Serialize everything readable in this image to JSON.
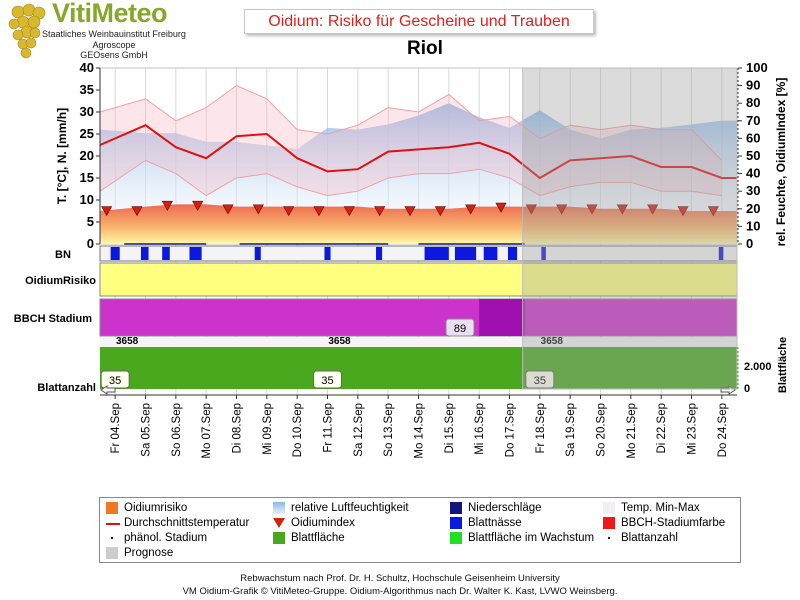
{
  "header": {
    "logo_title": "VitiMeteo",
    "logo_lines": [
      "Staatliches Weinbauinstitut Freiburg",
      "Agroscope",
      "GEOsens GmbH"
    ],
    "chart_title": "Oidium: Risiko für Gescheine und Trauben",
    "location": "Riol"
  },
  "colors": {
    "title_red": "#e0201c",
    "temperature_line": "#e01010",
    "oidium_index_marker": "#d42010",
    "humidity_area": "#9ec4ec",
    "temp_band": "#f6b8c0",
    "oidium_risk_band": "#ffff80",
    "bbch_color": "#cc33cc",
    "bbch_dark": "#a010b0",
    "leaf_area": "#4aa81e",
    "leaf_wetness": "#0a18e0",
    "forecast_shade": "#a0a0a0"
  },
  "chart_data": {
    "type": "line",
    "x_categories": [
      "Fr 04.Sep",
      "Sa 05.Sep",
      "So 06.Sep",
      "Mo 07.Sep",
      "Di 08.Sep",
      "Mi 09.Sep",
      "Do 10.Sep",
      "Fr 11.Sep",
      "Sa 12.Sep",
      "So 13.Sep",
      "Mo 14.Sep",
      "Di 15.Sep",
      "Mi 16.Sep",
      "Do 17.Sep",
      "Fr 18.Sep",
      "Sa 19.Sep",
      "So 20.Sep",
      "Mo 21.Sep",
      "Di 22.Sep",
      "Mi 23.Sep",
      "Do 24.Sep"
    ],
    "forecast_start": "Fr 18.Sep",
    "left_axis": {
      "label": "T. [°C], N. [mm/h]",
      "ticks": [
        0,
        5,
        10,
        15,
        20,
        25,
        30,
        35,
        40
      ],
      "range": [
        0,
        40
      ]
    },
    "right_axis": {
      "label": "rel. Feuchte, OidiumIndex [%]",
      "ticks": [
        0,
        10,
        20,
        30,
        40,
        50,
        60,
        70,
        80,
        90,
        100
      ],
      "range": [
        0,
        100
      ]
    },
    "series": [
      {
        "name": "Durchschnittstemperatur",
        "axis": "left",
        "x": [
          0,
          1,
          2,
          3,
          4,
          5,
          6,
          7,
          8,
          9,
          10,
          11,
          12,
          13,
          14,
          15,
          16,
          17,
          18,
          19,
          20
        ],
        "values": [
          22.5,
          27,
          22,
          19.5,
          24.5,
          25,
          19.5,
          16.5,
          17,
          21,
          21.5,
          22,
          23,
          20.5,
          15,
          19,
          19.5,
          20,
          17.5,
          17.5,
          15
        ]
      },
      {
        "name": "Temp. Min-Max",
        "axis": "left",
        "min": [
          12,
          19,
          16,
          11,
          15,
          16,
          13,
          11,
          12,
          15,
          16,
          16,
          17,
          15,
          11,
          13,
          14,
          14,
          12,
          12,
          11
        ],
        "max": [
          30,
          33,
          28,
          31,
          36,
          33,
          26,
          25,
          27,
          31,
          30,
          34,
          28,
          29,
          24,
          27,
          26,
          27,
          26,
          26,
          19
        ]
      },
      {
        "name": "relative Luftfeuchtigkeit",
        "axis": "right",
        "values": [
          65,
          63,
          63,
          58,
          58,
          56,
          54,
          66,
          65,
          68,
          73,
          80,
          72,
          66,
          76,
          65,
          60,
          65,
          66,
          68,
          70
        ]
      },
      {
        "name": "Oidiumrisiko",
        "axis": "left",
        "values": [
          7.5,
          8.5,
          9,
          9,
          8.5,
          8.5,
          8.5,
          8.5,
          8.5,
          8,
          8,
          8,
          8.5,
          8.5,
          8.5,
          8.5,
          8,
          8,
          8,
          7.5,
          7.5
        ]
      },
      {
        "name": "Oidiumindex",
        "axis": "right",
        "values": [
          19,
          19,
          22,
          22,
          20,
          20,
          19,
          19,
          19,
          19,
          19,
          19,
          20,
          21,
          20,
          20,
          20,
          20,
          20,
          19,
          19
        ]
      }
    ],
    "rows": {
      "bn_label": "BN",
      "risk_label": "OidiumRisiko",
      "bbch_label": "BBCH Stadium",
      "bbch_value": "89",
      "leaf_area_label": "Blattanzahl",
      "leaf_area_axis_label": "Blattfläche",
      "leaf_area_ticks": [
        "2.000",
        "0"
      ],
      "leaf_area_numbers": [
        "3658",
        "3658",
        "3658"
      ],
      "leaf_count": [
        "35",
        "35",
        "35"
      ],
      "leaf_wetness_segments": [
        [
          0.35,
          0.65
        ],
        [
          1.35,
          1.6
        ],
        [
          2.05,
          2.3
        ],
        [
          2.95,
          3.35
        ],
        [
          5.1,
          5.3
        ],
        [
          7.4,
          7.6
        ],
        [
          9.1,
          9.3
        ],
        [
          10.7,
          11.5
        ],
        [
          11.7,
          12.4
        ],
        [
          12.65,
          13.1
        ],
        [
          13.45,
          13.75
        ],
        [
          14.55,
          14.7
        ],
        [
          20.4,
          20.55
        ]
      ],
      "precip_segments": [
        [
          0.8,
          3.5
        ],
        [
          4.6,
          9.5
        ],
        [
          10.5,
          14.0
        ]
      ]
    }
  },
  "legend": [
    {
      "label": "Oidiumrisiko",
      "sym": "square",
      "color": "#f0781e"
    },
    {
      "label": "relative Luftfeuchtigkeit",
      "sym": "square-gradient",
      "color": "#9ec4ec"
    },
    {
      "label": "Niederschläge",
      "sym": "square",
      "color": "#101880"
    },
    {
      "label": "Temp. Min-Max",
      "sym": "square",
      "color": "#f2eef2"
    },
    {
      "label": "Durchschnittstemperatur",
      "sym": "line",
      "color": "#e01010"
    },
    {
      "label": "Oidiumindex",
      "sym": "triangle",
      "color": "#d42010"
    },
    {
      "label": "Blattnässe",
      "sym": "square",
      "color": "#0a18e0"
    },
    {
      "label": "BBCH-Stadiumfarbe",
      "sym": "square",
      "color": "#f01818"
    },
    {
      "label": "phänol. Stadium",
      "sym": "dot",
      "color": "#222222"
    },
    {
      "label": "Blattfläche",
      "sym": "square",
      "color": "#4aa81e"
    },
    {
      "label": "Blattfläche im Wachstum",
      "sym": "square",
      "color": "#20e020"
    },
    {
      "label": "Blattanzahl",
      "sym": "dot",
      "color": "#222222"
    },
    {
      "label": "Prognose",
      "sym": "square",
      "color": "#cccccc"
    }
  ],
  "footer": {
    "line1": "Rebwachstum nach Prof. Dr. H. Schultz, Hochschule Geisenheim University",
    "line2": "VM Oidium-Grafik © VitiMeteo-Gruppe. Oidium-Algorithmus nach Dr. Walter K. Kast, LVWO Weinsberg."
  }
}
